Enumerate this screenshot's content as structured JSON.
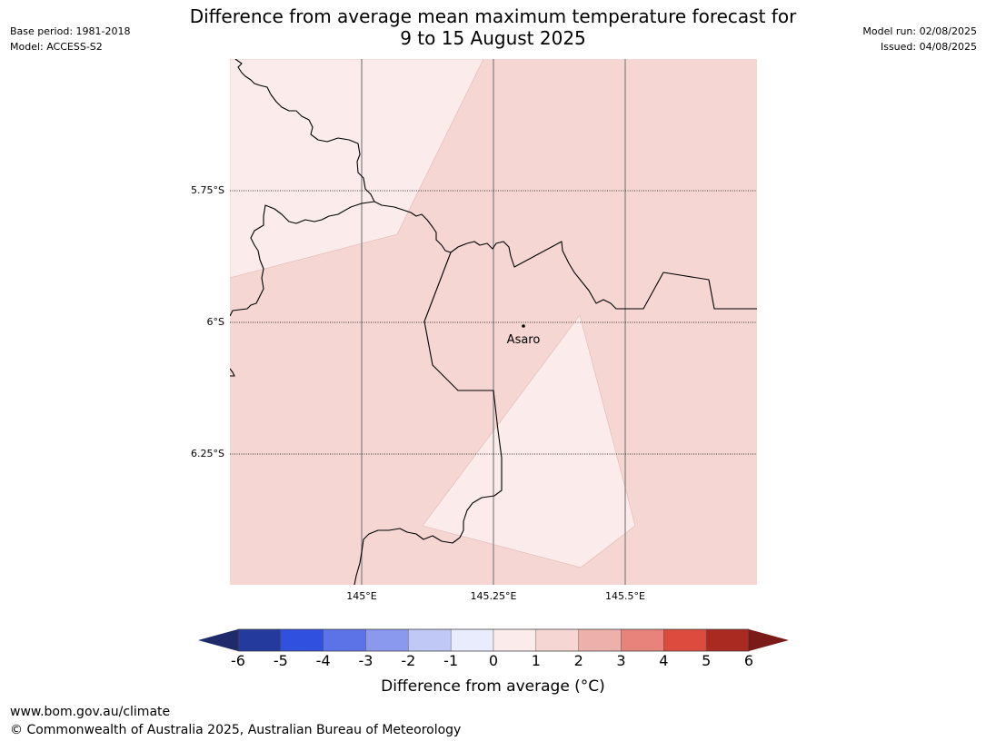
{
  "header": {
    "title_line1": "Difference from average mean maximum temperature forecast for",
    "title_line2": "9 to 15 August 2025",
    "base_period": "Base period: 1981-2018",
    "model": "Model: ACCESS-S2",
    "model_run": "Model run: 02/08/2025",
    "issued": "Issued: 04/08/2025"
  },
  "map": {
    "lat_labels": [
      "5.75°S",
      "6°S",
      "6.25°S"
    ],
    "lon_labels": [
      "145°E",
      "145.25°E",
      "145.5°E"
    ],
    "place_name": "Asaro",
    "colors": {
      "band_0_1": "#fbebea",
      "band_1_2": "#f5d6d3",
      "border": "#000000",
      "gridline": "#888888"
    }
  },
  "colorbar": {
    "ticks": [
      "-6",
      "-5",
      "-4",
      "-3",
      "-2",
      "-1",
      "0",
      "1",
      "2",
      "3",
      "4",
      "5",
      "6"
    ],
    "bins": [
      "#243a9c",
      "#3050e0",
      "#5b73e6",
      "#8a99ed",
      "#c0c8f6",
      "#e9ecfc",
      "#fbebea",
      "#f5d6d3",
      "#eeb0ab",
      "#e8837c",
      "#dd4a3e",
      "#aa2a22"
    ],
    "under_color": "#1f2a6b",
    "over_color": "#7a1b17",
    "label": "Difference from average (°C)"
  },
  "footer": {
    "url": "www.bom.gov.au/climate",
    "copyright": "© Commonwealth of Australia 2025, Australian Bureau of Meteorology"
  }
}
